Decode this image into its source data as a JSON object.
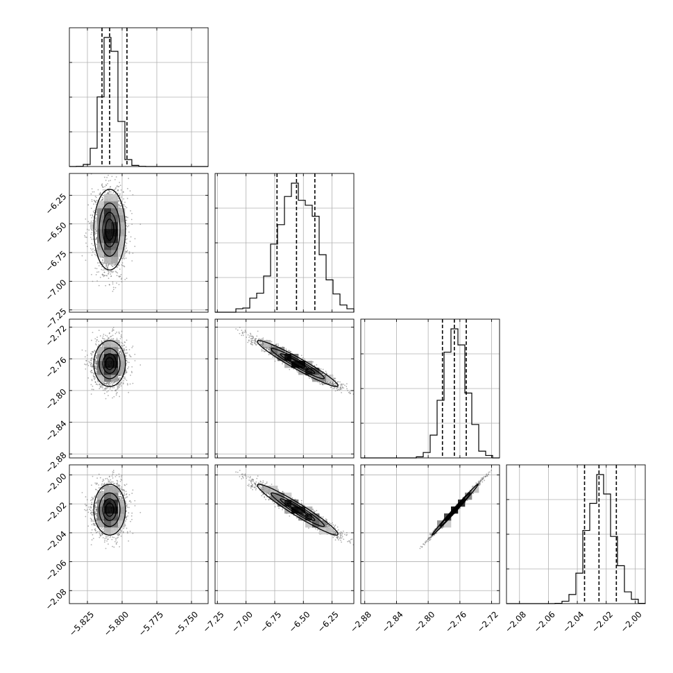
{
  "chart_data": {
    "type": "corner",
    "grid": true,
    "parameters": [
      {
        "index": 0,
        "range": [
          -5.838,
          -5.738
        ],
        "ticks": [
          -5.825,
          -5.8,
          -5.775,
          -5.75
        ],
        "tick_labels": [
          "−5.825",
          "−5.800",
          "−5.775",
          "−5.750"
        ],
        "mean": -5.809,
        "sd": 0.0055,
        "quantiles": [
          -5.8145,
          -5.809,
          -5.7965
        ]
      },
      {
        "index": 1,
        "range": [
          -7.27,
          -6.06
        ],
        "ticks": [
          -7.25,
          -7.0,
          -6.75,
          -6.5,
          -6.25
        ],
        "tick_labels": [
          "−7.25",
          "−7.00",
          "−6.75",
          "−6.50",
          "−6.25"
        ],
        "mean": -6.55,
        "sd": 0.17,
        "quantiles": [
          -6.73,
          -6.56,
          -6.4
        ]
      },
      {
        "index": 2,
        "range": [
          -2.885,
          -2.71
        ],
        "ticks": [
          -2.88,
          -2.84,
          -2.8,
          -2.76,
          -2.72
        ],
        "tick_labels": [
          "−2.88",
          "−2.84",
          "−2.80",
          "−2.76",
          "−2.72"
        ],
        "mean": -2.766,
        "sd": 0.014,
        "quantiles": [
          -2.782,
          -2.767,
          -2.752
        ]
      },
      {
        "index": 3,
        "range": [
          -2.089,
          -1.993
        ],
        "ticks": [
          -2.08,
          -2.06,
          -2.04,
          -2.02,
          -2.0
        ],
        "tick_labels": [
          "−2.08",
          "−2.06",
          "−2.04",
          "−2.02",
          "−2.00"
        ],
        "mean": -2.024,
        "sd": 0.0085,
        "quantiles": [
          -2.035,
          -2.025,
          -2.013
        ]
      }
    ],
    "correlations": [
      [
        1,
        0,
        0,
        0
      ],
      [
        0,
        1,
        -0.96,
        -0.96
      ],
      [
        0,
        -0.96,
        1,
        0.995
      ],
      [
        0,
        -0.96,
        0.995,
        1
      ]
    ],
    "contour_levels_sigma": [
      0.5,
      1.0,
      1.5,
      2.0
    ],
    "histogram": {
      "bins": 20,
      "style": "step"
    },
    "scatter": {
      "color": "#6e6e6e",
      "density_shading": "grayscale"
    }
  }
}
